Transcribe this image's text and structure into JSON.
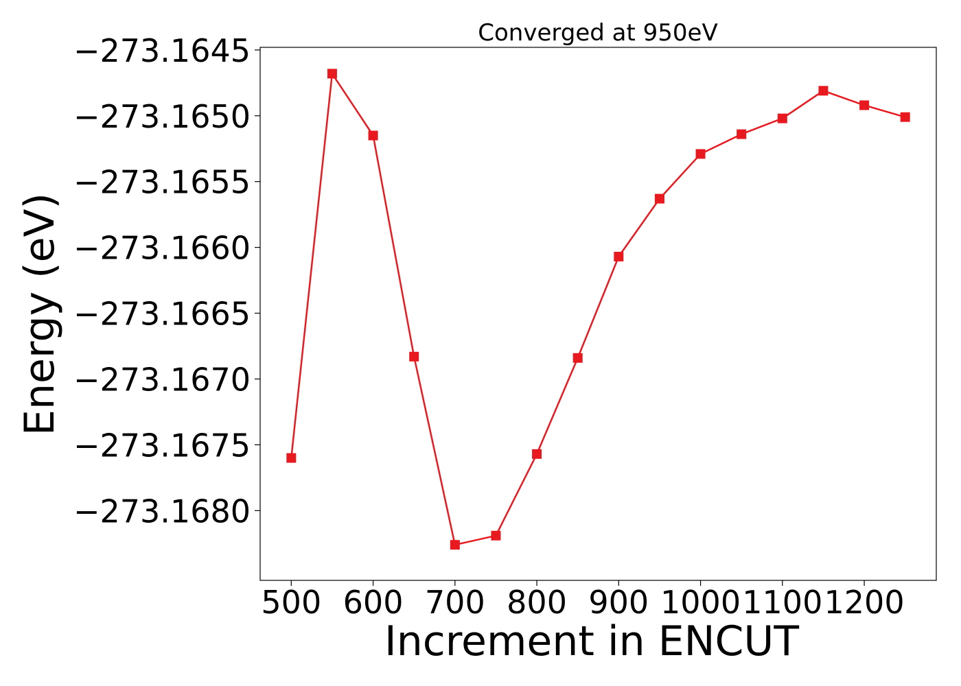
{
  "chart_data": {
    "type": "line",
    "title": "Converged at 950eV",
    "xlabel": "Increment in ENCUT",
    "ylabel": "Energy (eV)",
    "x": [
      500,
      550,
      600,
      650,
      700,
      750,
      800,
      850,
      900,
      950,
      1000,
      1050,
      1100,
      1150,
      1200,
      1250
    ],
    "y": [
      -273.1676,
      -273.16468,
      -273.16515,
      -273.16683,
      -273.16826,
      -273.16819,
      -273.16757,
      -273.16684,
      -273.16607,
      -273.16563,
      -273.16529,
      -273.16514,
      -273.16502,
      -273.16481,
      -273.16492,
      -273.16501
    ],
    "xlim": [
      462,
      1288
    ],
    "ylim": [
      -273.16853,
      -273.16448
    ],
    "xticks": [
      500,
      600,
      700,
      800,
      900,
      1000,
      1100,
      1200
    ],
    "xtick_labels": [
      "500",
      "600",
      "700",
      "800",
      "900",
      "1000",
      "1100",
      "1200"
    ],
    "yticks": [
      -273.1645,
      -273.165,
      -273.1655,
      -273.166,
      -273.1665,
      -273.167,
      -273.1675,
      -273.168
    ],
    "ytick_labels": [
      "−273.1645",
      "−273.1650",
      "−273.1655",
      "−273.1660",
      "−273.1665",
      "−273.1670",
      "−273.1675",
      "−273.1680"
    ],
    "marker": "square",
    "grid": false,
    "legend": "none",
    "color": "#e8191f"
  }
}
